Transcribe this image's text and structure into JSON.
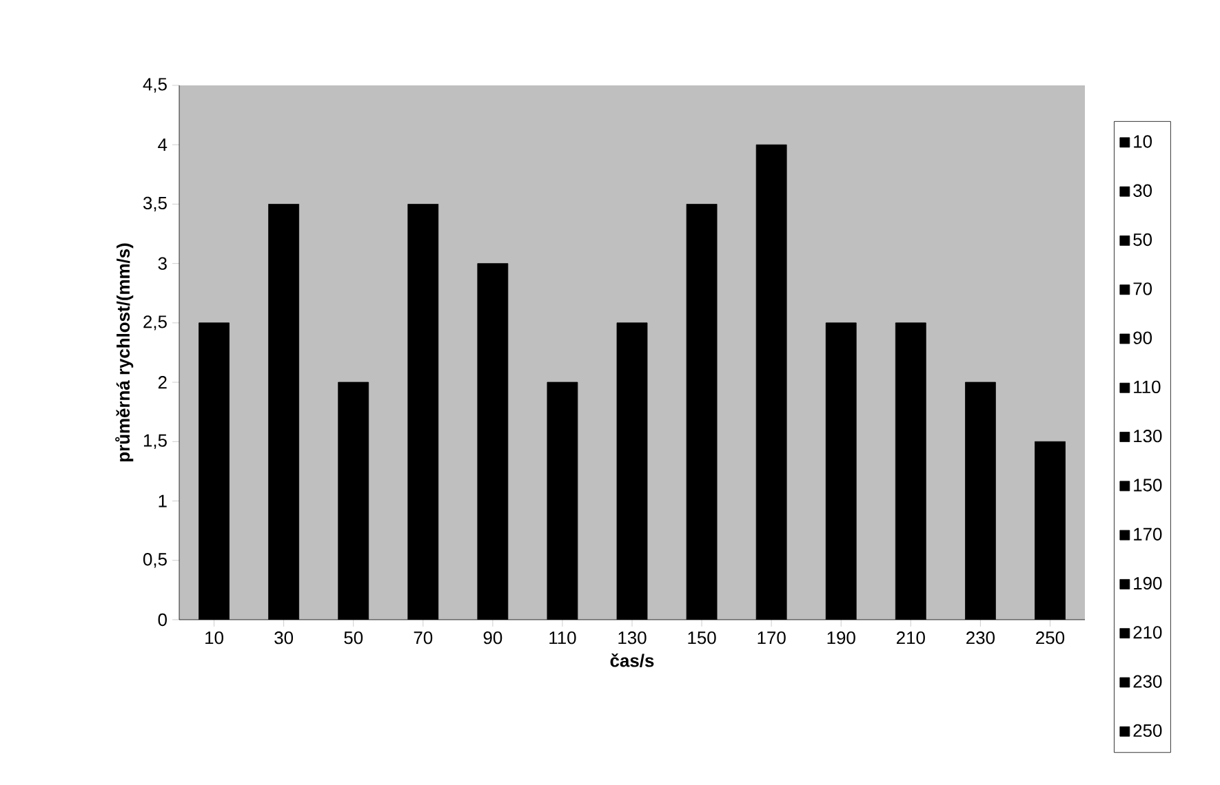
{
  "chart_data": {
    "type": "bar",
    "xlabel": "čas/s",
    "ylabel": "průměrná rychlost/(mm/s)",
    "categories": [
      "10",
      "30",
      "50",
      "70",
      "90",
      "110",
      "130",
      "150",
      "170",
      "190",
      "210",
      "230",
      "250"
    ],
    "series": [
      {
        "name": "10",
        "color": "#000000",
        "values": [
          2.5,
          null,
          null,
          null,
          null,
          null,
          null,
          null,
          null,
          null,
          null,
          null,
          null
        ]
      },
      {
        "name": "30",
        "color": "#000000",
        "values": [
          null,
          3.5,
          null,
          null,
          null,
          null,
          null,
          null,
          null,
          null,
          null,
          null,
          null
        ]
      },
      {
        "name": "50",
        "color": "#000000",
        "values": [
          null,
          null,
          2,
          null,
          null,
          null,
          null,
          null,
          null,
          null,
          null,
          null,
          null
        ]
      },
      {
        "name": "70",
        "color": "#000000",
        "values": [
          null,
          null,
          null,
          3.5,
          null,
          null,
          null,
          null,
          null,
          null,
          null,
          null,
          null
        ]
      },
      {
        "name": "90",
        "color": "#000000",
        "values": [
          null,
          null,
          null,
          null,
          3,
          null,
          null,
          null,
          null,
          null,
          null,
          null,
          null
        ]
      },
      {
        "name": "110",
        "color": "#000000",
        "values": [
          null,
          null,
          null,
          null,
          null,
          2,
          null,
          null,
          null,
          null,
          null,
          null,
          null
        ]
      },
      {
        "name": "130",
        "color": "#000000",
        "values": [
          null,
          null,
          null,
          null,
          null,
          null,
          2.5,
          null,
          null,
          null,
          null,
          null,
          null
        ]
      },
      {
        "name": "150",
        "color": "#000000",
        "values": [
          null,
          null,
          null,
          null,
          null,
          null,
          null,
          3.5,
          null,
          null,
          null,
          null,
          null
        ]
      },
      {
        "name": "170",
        "color": "#000000",
        "values": [
          null,
          null,
          null,
          null,
          null,
          null,
          null,
          null,
          4,
          null,
          null,
          null,
          null
        ]
      },
      {
        "name": "190",
        "color": "#000000",
        "values": [
          null,
          null,
          null,
          null,
          null,
          null,
          null,
          null,
          null,
          2.5,
          null,
          null,
          null
        ]
      },
      {
        "name": "210",
        "color": "#000000",
        "values": [
          null,
          null,
          null,
          null,
          null,
          null,
          null,
          null,
          null,
          null,
          2.5,
          null,
          null
        ]
      },
      {
        "name": "230",
        "color": "#000000",
        "values": [
          null,
          null,
          null,
          null,
          null,
          null,
          null,
          null,
          null,
          null,
          null,
          2,
          null
        ]
      },
      {
        "name": "250",
        "color": "#000000",
        "values": [
          null,
          null,
          null,
          null,
          null,
          null,
          null,
          null,
          null,
          null,
          null,
          null,
          1.5
        ]
      }
    ],
    "ylim": [
      0,
      4.5
    ],
    "yticks": [
      0,
      {
        "value": 0.5,
        "label": "0,5"
      },
      1,
      {
        "value": 1.5,
        "label": "1,5"
      },
      2,
      {
        "value": 2.5,
        "label": "2,5"
      },
      3,
      {
        "value": 3.5,
        "label": "3,5"
      },
      4,
      {
        "value": 4.5,
        "label": "4,5"
      }
    ],
    "legend": "right"
  }
}
